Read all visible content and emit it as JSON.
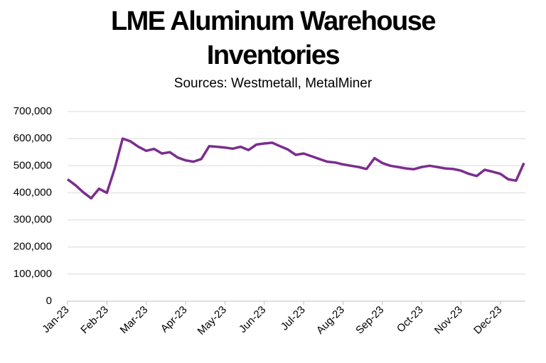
{
  "chart_data": {
    "type": "line",
    "title": "LME Aluminum Warehouse Inventories",
    "subtitle": "Sources: Westmetall, MetalMiner",
    "categories": [
      "Jan-23",
      null,
      null,
      null,
      null,
      "Feb-23",
      null,
      null,
      null,
      null,
      "Mar-23",
      null,
      null,
      null,
      null,
      "Apr-23",
      null,
      null,
      null,
      null,
      "May-23",
      null,
      null,
      null,
      null,
      "Jun-23",
      null,
      null,
      null,
      null,
      "Jul-23",
      null,
      null,
      null,
      null,
      "Aug-23",
      null,
      null,
      null,
      null,
      "Sep-23",
      null,
      null,
      null,
      null,
      "Oct-23",
      null,
      null,
      null,
      null,
      "Nov-23",
      null,
      null,
      null,
      null,
      "Dec-23",
      null,
      null,
      null
    ],
    "values": [
      450000,
      428000,
      402000,
      380000,
      415000,
      400000,
      490000,
      600000,
      590000,
      570000,
      555000,
      562000,
      545000,
      550000,
      530000,
      520000,
      515000,
      525000,
      572000,
      570000,
      567000,
      563000,
      570000,
      558000,
      578000,
      582000,
      585000,
      572000,
      560000,
      540000,
      545000,
      535000,
      525000,
      515000,
      512000,
      505000,
      500000,
      495000,
      488000,
      528000,
      510000,
      500000,
      495000,
      490000,
      487000,
      495000,
      500000,
      495000,
      490000,
      488000,
      482000,
      470000,
      462000,
      485000,
      478000,
      470000,
      450000,
      445000,
      510000
    ],
    "color": "#7b2d8e",
    "ylim": [
      0,
      700000
    ],
    "yticks": [
      0,
      {
        "value": 100000,
        "label": "100,000"
      },
      {
        "value": 200000,
        "label": "200,000"
      },
      {
        "value": 300000,
        "label": "300,000"
      },
      {
        "value": 400000,
        "label": "400,000"
      },
      {
        "value": 500000,
        "label": "500,000"
      },
      {
        "value": 600000,
        "label": "600,000"
      },
      {
        "value": 700000,
        "label": "700,000"
      }
    ],
    "grid": true
  }
}
